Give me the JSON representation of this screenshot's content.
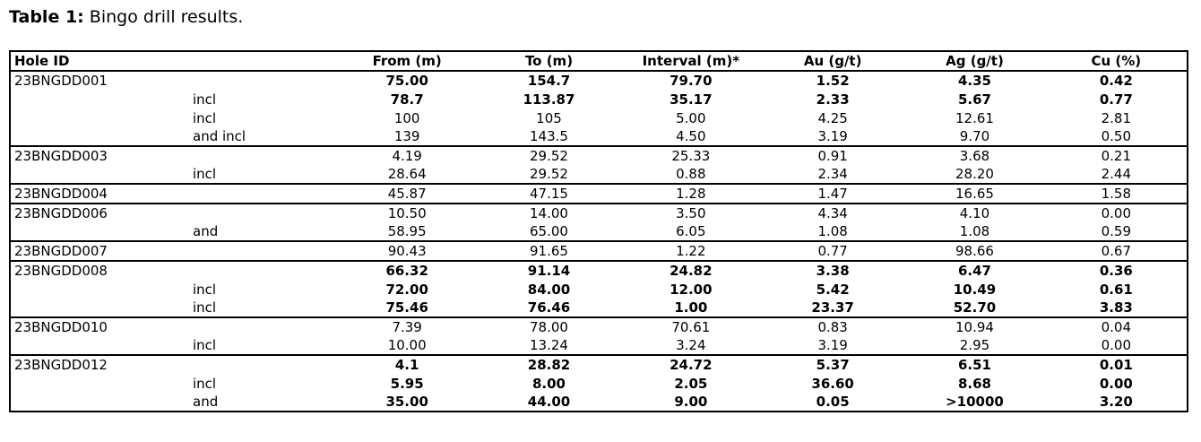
{
  "page": {
    "title_bold": "Table 1:",
    "title_rest": " Bingo drill results."
  },
  "table": {
    "headers": {
      "hole_id": "Hole ID",
      "from": "From (m)",
      "to": "To (m)",
      "interval": "Interval (m)*",
      "au": "Au (g/t)",
      "ag": "Ag (g/t)",
      "cu": "Cu (%)"
    },
    "rows": [
      {
        "hole_id": "23BNGDD001",
        "qualifier": "",
        "from": "75.00",
        "to": "154.7",
        "interval": "79.70",
        "au": "1.52",
        "ag": "4.35",
        "cu": "0.42",
        "bold": true,
        "section_start": true
      },
      {
        "hole_id": "",
        "qualifier": "incl",
        "from": "78.7",
        "to": "113.87",
        "interval": "35.17",
        "au": "2.33",
        "ag": "5.67",
        "cu": "0.77",
        "bold": true,
        "section_start": false
      },
      {
        "hole_id": "",
        "qualifier": "incl",
        "from": "100",
        "to": "105",
        "interval": "5.00",
        "au": "4.25",
        "ag": "12.61",
        "cu": "2.81",
        "bold": false,
        "section_start": false
      },
      {
        "hole_id": "",
        "qualifier": "and incl",
        "from": "139",
        "to": "143.5",
        "interval": "4.50",
        "au": "3.19",
        "ag": "9.70",
        "cu": "0.50",
        "bold": false,
        "section_start": false
      },
      {
        "hole_id": "23BNGDD003",
        "qualifier": "",
        "from": "4.19",
        "to": "29.52",
        "interval": "25.33",
        "au": "0.91",
        "ag": "3.68",
        "cu": "0.21",
        "bold": false,
        "section_start": true
      },
      {
        "hole_id": "",
        "qualifier": "incl",
        "from": "28.64",
        "to": "29.52",
        "interval": "0.88",
        "au": "2.34",
        "ag": "28.20",
        "cu": "2.44",
        "bold": false,
        "section_start": false
      },
      {
        "hole_id": "23BNGDD004",
        "qualifier": "",
        "from": "45.87",
        "to": "47.15",
        "interval": "1.28",
        "au": "1.47",
        "ag": "16.65",
        "cu": "1.58",
        "bold": false,
        "section_start": true
      },
      {
        "hole_id": "23BNGDD006",
        "qualifier": "",
        "from": "10.50",
        "to": "14.00",
        "interval": "3.50",
        "au": "4.34",
        "ag": "4.10",
        "cu": "0.00",
        "bold": false,
        "section_start": true
      },
      {
        "hole_id": "",
        "qualifier": "and",
        "from": "58.95",
        "to": "65.00",
        "interval": "6.05",
        "au": "1.08",
        "ag": "1.08",
        "cu": "0.59",
        "bold": false,
        "section_start": false
      },
      {
        "hole_id": "23BNGDD007",
        "qualifier": "",
        "from": "90.43",
        "to": "91.65",
        "interval": "1.22",
        "au": "0.77",
        "ag": "98.66",
        "cu": "0.67",
        "bold": false,
        "section_start": true
      },
      {
        "hole_id": "23BNGDD008",
        "qualifier": "",
        "from": "66.32",
        "to": "91.14",
        "interval": "24.82",
        "au": "3.38",
        "ag": "6.47",
        "cu": "0.36",
        "bold": true,
        "section_start": true
      },
      {
        "hole_id": "",
        "qualifier": "incl",
        "from": "72.00",
        "to": "84.00",
        "interval": "12.00",
        "au": "5.42",
        "ag": "10.49",
        "cu": "0.61",
        "bold": true,
        "section_start": false
      },
      {
        "hole_id": "",
        "qualifier": "incl",
        "from": "75.46",
        "to": "76.46",
        "interval": "1.00",
        "au": "23.37",
        "ag": "52.70",
        "cu": "3.83",
        "bold": true,
        "section_start": false
      },
      {
        "hole_id": "23BNGDD010",
        "qualifier": "",
        "from": "7.39",
        "to": "78.00",
        "interval": "70.61",
        "au": "0.83",
        "ag": "10.94",
        "cu": "0.04",
        "bold": false,
        "section_start": true
      },
      {
        "hole_id": "",
        "qualifier": "incl",
        "from": "10.00",
        "to": "13.24",
        "interval": "3.24",
        "au": "3.19",
        "ag": "2.95",
        "cu": "0.00",
        "bold": false,
        "section_start": false
      },
      {
        "hole_id": "23BNGDD012",
        "qualifier": "",
        "from": "4.1",
        "to": "28.82",
        "interval": "24.72",
        "au": "5.37",
        "ag": "6.51",
        "cu": "0.01",
        "bold": true,
        "section_start": true
      },
      {
        "hole_id": "",
        "qualifier": "incl",
        "from": "5.95",
        "to": "8.00",
        "interval": "2.05",
        "au": "36.60",
        "ag": "8.68",
        "cu": "0.00",
        "bold": true,
        "section_start": false
      },
      {
        "hole_id": "",
        "qualifier": "and",
        "from": "35.00",
        "to": "44.00",
        "interval": "9.00",
        "au": "0.05",
        "ag": ">10000",
        "cu": "3.20",
        "bold": true,
        "section_start": false
      }
    ]
  }
}
